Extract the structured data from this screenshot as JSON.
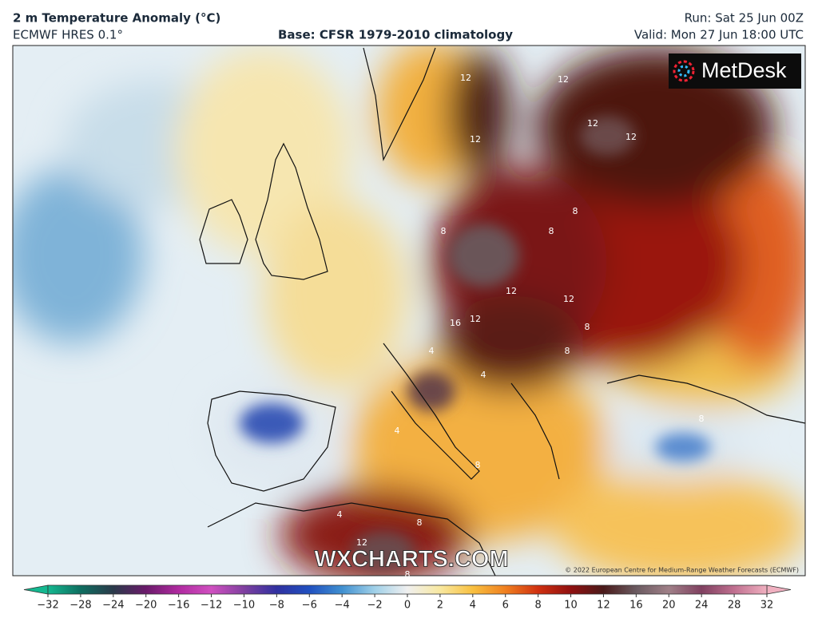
{
  "header": {
    "title": "2 m Temperature Anomaly (°C)",
    "model": "ECMWF HRES 0.1°",
    "base": "Base: CFSR 1979-2010 climatology",
    "run": "Run: Sat 25 Jun 00Z",
    "valid": "Valid: Mon 27 Jun 18:00 UTC"
  },
  "map": {
    "contour_labels": [
      "12",
      "12",
      "12",
      "12",
      "12",
      "8",
      "8",
      "8",
      "12",
      "16",
      "12",
      "12",
      "8",
      "8",
      "4",
      "4",
      "8",
      "8",
      "8",
      "4",
      "8",
      "12",
      "4"
    ],
    "watermark": "WXCHARTS.COM",
    "logo": "MetDesk",
    "copyright": "© 2022 European Centre for Medium-Range Weather Forecasts (ECMWF)"
  },
  "colorbar": {
    "ticks": [
      {
        "value": -32,
        "label": "−32"
      },
      {
        "value": -28,
        "label": "−28"
      },
      {
        "value": -24,
        "label": "−24"
      },
      {
        "value": -20,
        "label": "−20"
      },
      {
        "value": -16,
        "label": "−16"
      },
      {
        "value": -12,
        "label": "−12"
      },
      {
        "value": -10,
        "label": "−10"
      },
      {
        "value": -8,
        "label": "−8"
      },
      {
        "value": -6,
        "label": "−6"
      },
      {
        "value": -4,
        "label": "−4"
      },
      {
        "value": -2,
        "label": "−2"
      },
      0,
      2,
      4,
      6,
      8,
      10,
      12,
      16,
      20,
      24,
      28,
      32
    ],
    "colors": [
      "#14b890",
      "#0e6e60",
      "#2a3a4a",
      "#6a1a6a",
      "#b02aa0",
      "#d050c0",
      "#8040a0",
      "#3030a0",
      "#2050c0",
      "#4090d0",
      "#a0d0e8",
      "#f0f0f0",
      "#f8e8a0",
      "#f8c040",
      "#f08020",
      "#d03010",
      "#901010",
      "#4a1a1a",
      "#6a5a60",
      "#a08088",
      "#804060",
      "#c07090",
      "#f0b0c0"
    ]
  }
}
